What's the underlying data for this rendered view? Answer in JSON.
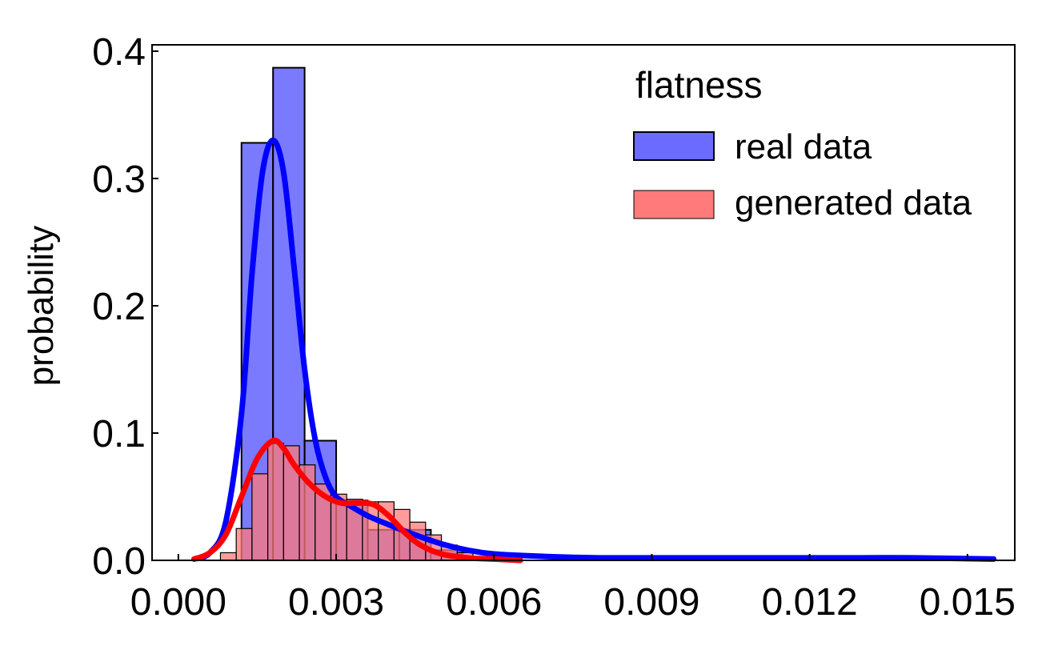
{
  "chart_data": {
    "type": "bar",
    "title": "",
    "xlabel": "",
    "ylabel": "probability",
    "xlim": [
      -0.0005,
      0.0159
    ],
    "ylim": [
      0.0,
      0.405
    ],
    "x_ticks": [
      "0.000",
      "0.003",
      "0.006",
      "0.009",
      "0.012",
      "0.015"
    ],
    "x_tick_values": [
      0.0,
      0.003,
      0.006,
      0.009,
      0.012,
      0.015
    ],
    "y_ticks": [
      "0.0",
      "0.1",
      "0.2",
      "0.3",
      "0.4"
    ],
    "y_tick_values": [
      0.0,
      0.1,
      0.2,
      0.3,
      0.4
    ],
    "legend": {
      "title": "flatness",
      "position": "top-right",
      "entries": [
        {
          "label": "real data",
          "color": "#6b6bff"
        },
        {
          "label": "generated data",
          "color": "#ff7a7a"
        }
      ]
    },
    "series": [
      {
        "name": "real data",
        "color": "#6b6bff",
        "bin_edges": [
          0.0012,
          0.0018,
          0.0024,
          0.003,
          0.0036,
          0.0042,
          0.0048,
          0.0054
        ],
        "values": [
          0.328,
          0.387,
          0.094,
          0.047,
          0.024,
          0.024,
          0.008
        ]
      },
      {
        "name": "generated data",
        "color": "#ff7a7a",
        "bin_edges": [
          0.0008,
          0.0011,
          0.0014,
          0.0017,
          0.002,
          0.0023,
          0.0026,
          0.0029,
          0.0032,
          0.0035,
          0.0038,
          0.0041,
          0.0044,
          0.0047,
          0.005,
          0.0053,
          0.0056,
          0.0059
        ],
        "values": [
          0.006,
          0.025,
          0.068,
          0.092,
          0.09,
          0.075,
          0.06,
          0.052,
          0.048,
          0.046,
          0.046,
          0.04,
          0.03,
          0.02,
          0.012,
          0.006,
          0.003
        ]
      }
    ],
    "kde": [
      {
        "name": "real data",
        "color": "#0000ff",
        "x": [
          0.0003,
          0.0006,
          0.0009,
          0.0012,
          0.0014,
          0.0016,
          0.0018,
          0.002,
          0.0022,
          0.0024,
          0.0026,
          0.0028,
          0.003,
          0.0033,
          0.0036,
          0.004,
          0.0045,
          0.005,
          0.0055,
          0.006,
          0.007,
          0.008,
          0.009,
          0.01,
          0.011,
          0.012,
          0.013,
          0.014,
          0.0155
        ],
        "y": [
          0.001,
          0.006,
          0.03,
          0.115,
          0.225,
          0.305,
          0.33,
          0.305,
          0.23,
          0.15,
          0.095,
          0.065,
          0.05,
          0.042,
          0.035,
          0.028,
          0.02,
          0.013,
          0.008,
          0.005,
          0.003,
          0.002,
          0.002,
          0.002,
          0.002,
          0.002,
          0.002,
          0.002,
          0.001
        ]
      },
      {
        "name": "generated data",
        "color": "#ff0000",
        "x": [
          0.0003,
          0.0006,
          0.0009,
          0.0012,
          0.0015,
          0.0018,
          0.002,
          0.0022,
          0.0025,
          0.0028,
          0.0031,
          0.0034,
          0.0037,
          0.004,
          0.0043,
          0.0046,
          0.005,
          0.0055,
          0.006,
          0.0065
        ],
        "y": [
          0.001,
          0.006,
          0.02,
          0.05,
          0.08,
          0.094,
          0.088,
          0.075,
          0.06,
          0.05,
          0.045,
          0.045,
          0.044,
          0.035,
          0.022,
          0.012,
          0.005,
          0.002,
          0.001,
          0.0
        ]
      }
    ]
  }
}
